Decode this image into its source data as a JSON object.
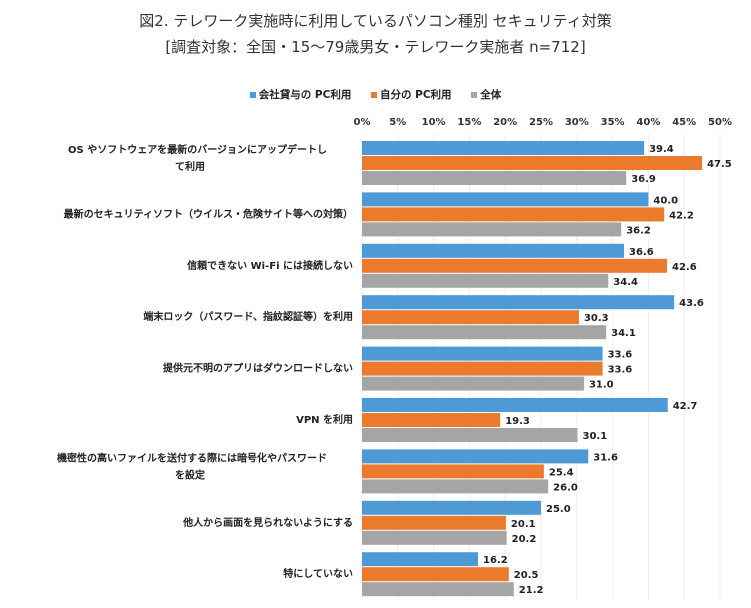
{
  "chart_data": {
    "type": "bar",
    "orientation": "horizontal",
    "title": "図2. テレワーク実施時に利用しているパソコン種別 セキュリティ対策",
    "subtitle": "[調査対象：全国・15～79歳男女・テレワーク実施者 n=712]",
    "xlim": [
      0,
      50
    ],
    "x_ticks": [
      "0%",
      "5%",
      "10%",
      "15%",
      "20%",
      "25%",
      "30%",
      "35%",
      "40%",
      "45%",
      "50%"
    ],
    "x_axis_position": "top",
    "grid": true,
    "legend_position": "top",
    "categories": [
      "OS やソフトウェアを最新のバージョンにアップデートして利用",
      "最新のセキュリティソフト（ウイルス・危険サイト等への対策）",
      "信頼できない Wi-Fi には接続しない",
      "端末ロック（パスワード、指紋認証等）を利用",
      "提供元不明のアプリはダウンロードしない",
      "VPN を利用",
      "機密性の高いファイルを送付する際には暗号化やパスワードを設定",
      "他人から画面を見られないようにする",
      "特にしていない"
    ],
    "series": [
      {
        "name": "会社貸与の PC利用",
        "color": "#4e9ad6",
        "values": [
          39.4,
          40.0,
          36.6,
          43.6,
          33.6,
          42.7,
          31.6,
          25.0,
          16.2
        ]
      },
      {
        "name": "自分の PC利用",
        "color": "#ec7a2c",
        "values": [
          47.5,
          42.2,
          42.6,
          30.3,
          33.6,
          19.3,
          25.4,
          20.1,
          20.5
        ]
      },
      {
        "name": "全体",
        "color": "#a5a5a5",
        "values": [
          36.9,
          36.2,
          34.4,
          34.1,
          31.0,
          30.1,
          26.0,
          20.2,
          21.2
        ]
      }
    ]
  }
}
